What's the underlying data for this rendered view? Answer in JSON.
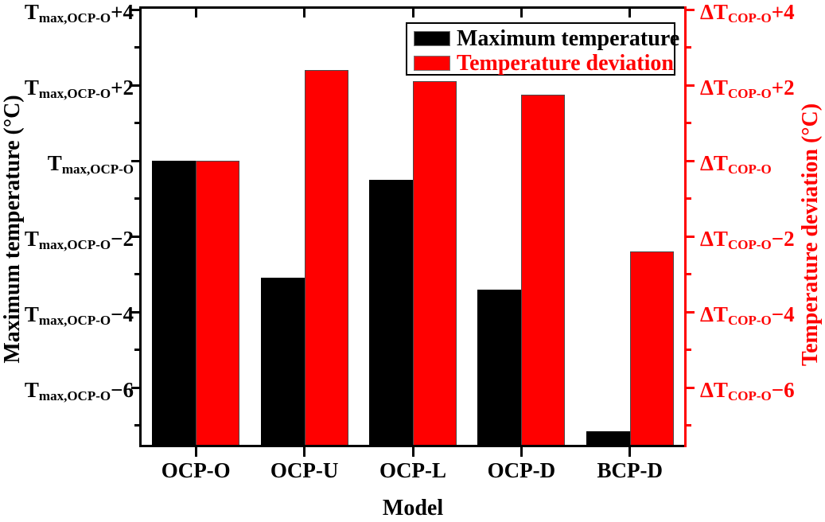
{
  "figure": {
    "background": "#ffffff",
    "black": "#000000",
    "red": "#ff0000"
  },
  "axes": {
    "x": {
      "label": "Model",
      "categories": [
        "OCP-O",
        "OCP-U",
        "OCP-L",
        "OCP-D",
        "BCP-D"
      ]
    },
    "left": {
      "label": "Maximum temperature (°C)",
      "color": "#000000",
      "tick_base": "T",
      "tick_sub": "max,OCP-O",
      "tick_suffixes": [
        "+4",
        "+2",
        "",
        "−2",
        "−4",
        "−6"
      ],
      "tick_values": [
        4,
        2,
        0,
        -2,
        -4,
        -6
      ],
      "minor_tick_values": [
        3,
        1,
        -1,
        -3,
        -5,
        -7
      ]
    },
    "right": {
      "label": "Temperature deviation (°C)",
      "color": "#ff0000",
      "tick_base": "ΔT",
      "tick_sub": "COP-O",
      "tick_suffixes": [
        "+4",
        "+2",
        "",
        "−2",
        "−4",
        "−6"
      ],
      "tick_values": [
        4,
        2,
        0,
        -2,
        -4,
        -6
      ],
      "minor_tick_values": [
        3,
        1,
        -1,
        -3,
        -5,
        -7
      ]
    }
  },
  "legend": {
    "position": "upper-right-inside",
    "items": [
      {
        "label": "Maximum temperature",
        "color": "#000000"
      },
      {
        "label": "Temperature deviation",
        "color": "#ff0000"
      }
    ]
  },
  "chart_data": {
    "type": "bar",
    "categories": [
      "OCP-O",
      "OCP-U",
      "OCP-L",
      "OCP-D",
      "BCP-D"
    ],
    "series": [
      {
        "name": "Maximum temperature",
        "color": "#000000",
        "axis": "left",
        "reference": "T_max,OCP-O",
        "values_relative_to_reference": [
          0,
          -3.1,
          -0.5,
          -3.4,
          -7.15
        ]
      },
      {
        "name": "Temperature deviation",
        "color": "#ff0000",
        "axis": "right",
        "reference": "ΔT_COP-O",
        "values_relative_to_reference": [
          0,
          2.4,
          2.1,
          1.75,
          -2.4
        ]
      }
    ],
    "title": "",
    "xlabel": "Model",
    "ylabel_left": "Maximum temperature (°C)",
    "ylabel_right": "Temperature deviation (°C)",
    "ylim": [
      -7.58,
      4.08
    ],
    "ytick_major_step": 2,
    "ytick_minor_step": 1,
    "grid": false,
    "bars_from_baseline": "bottom-of-plot",
    "legend_position": "upper-right-inside"
  }
}
